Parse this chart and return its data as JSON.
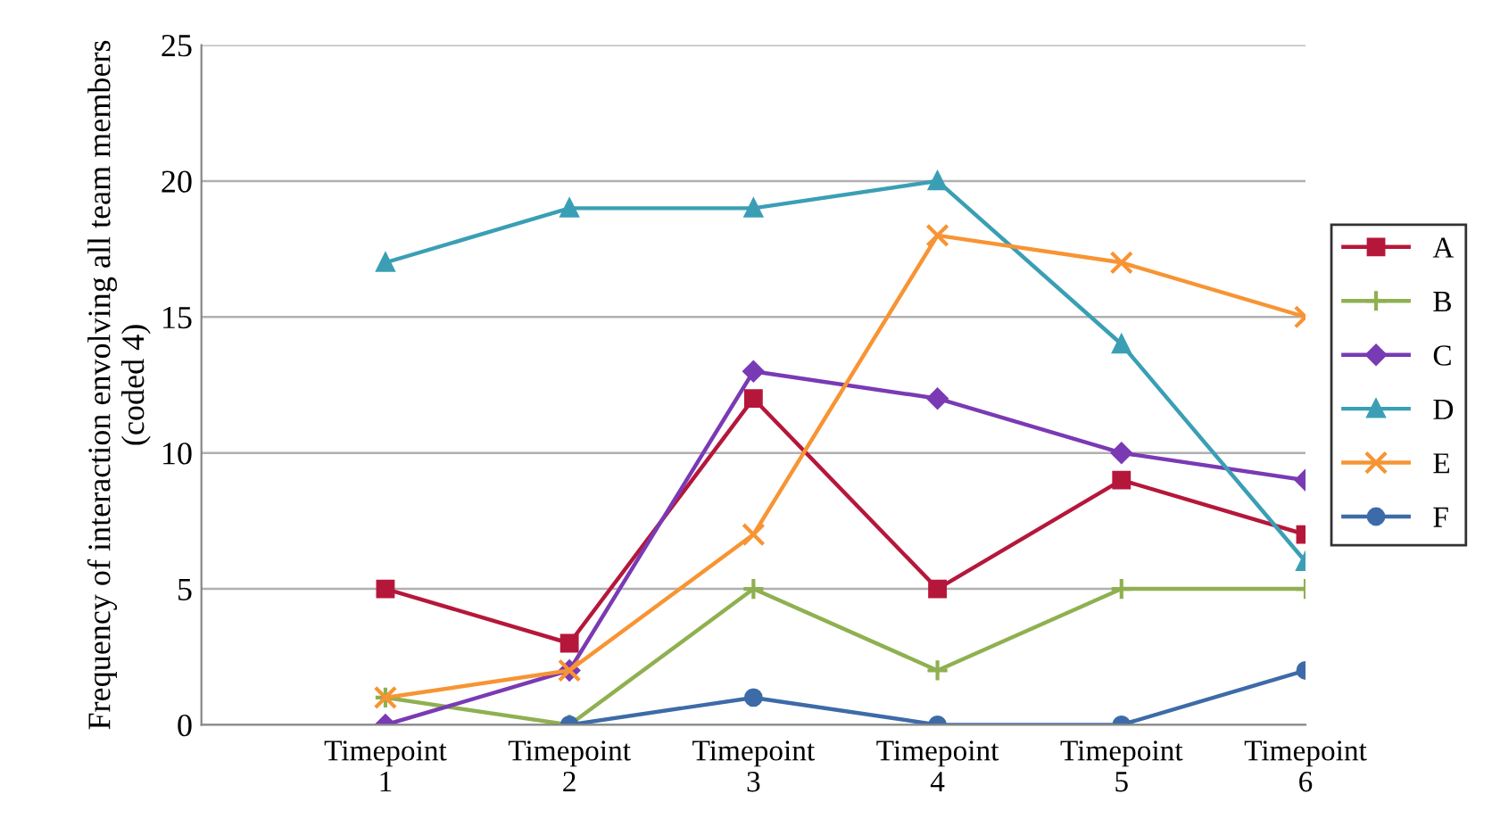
{
  "chart_data": {
    "type": "line",
    "ylabel": "Frequency of interaction envolving all team members (coded 4)",
    "categories": [
      "Timepoint\n1",
      "Timepoint\n2",
      "Timepoint\n3",
      "Timepoint\n4",
      "Timepoint\n5",
      "Timepoint\n6"
    ],
    "series": [
      {
        "name": "A",
        "color": "#b5173b",
        "marker": "square",
        "values": [
          5,
          3,
          12,
          5,
          9,
          7
        ]
      },
      {
        "name": "B",
        "color": "#8fb050",
        "marker": "cross",
        "values": [
          1,
          0,
          5,
          2,
          5,
          5
        ]
      },
      {
        "name": "C",
        "color": "#7a3ab4",
        "marker": "diamond",
        "values": [
          0,
          2,
          13,
          12,
          10,
          9
        ]
      },
      {
        "name": "D",
        "color": "#3a9fb5",
        "marker": "triangle",
        "values": [
          17,
          19,
          19,
          20,
          14,
          6
        ]
      },
      {
        "name": "E",
        "color": "#f79433",
        "marker": "x",
        "values": [
          1,
          2,
          7,
          18,
          17,
          15
        ]
      },
      {
        "name": "F",
        "color": "#3d6ba8",
        "marker": "circle",
        "values": [
          null,
          0,
          1,
          0,
          0,
          2
        ]
      }
    ],
    "ylim": [
      0,
      25
    ],
    "yticks": [
      0,
      5,
      10,
      15,
      20,
      25
    ],
    "grid": "y",
    "legend": "right",
    "line_style": "solid"
  }
}
